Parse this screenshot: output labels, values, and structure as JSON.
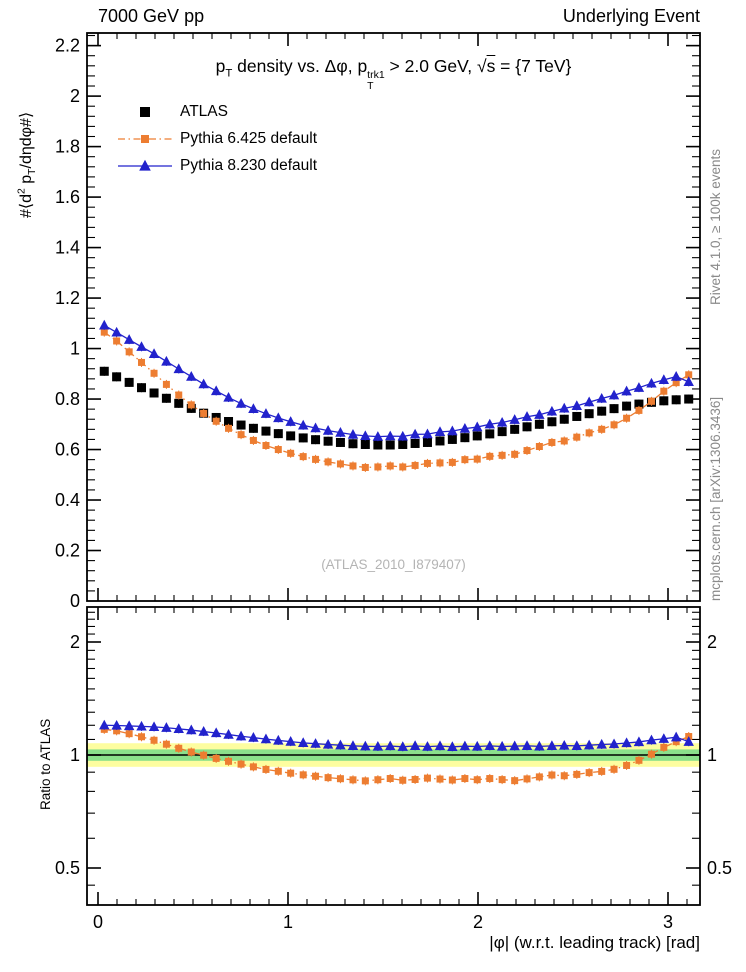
{
  "header": {
    "left": "7000 GeV pp",
    "right": "Underlying Event"
  },
  "captions": {
    "rivet": "Rivet 4.1.0, ≥ 100k events",
    "mcplots": "mcplots.cern.ch [arXiv:1306.3436]",
    "watermark": "(ATLAS_2010_I879407)"
  },
  "chart_data": {
    "type": "line",
    "title_segments": [
      {
        "text": "p"
      },
      {
        "sub": "T"
      },
      {
        "text": " density vs. Δφ, p"
      },
      {
        "stack": {
          "sup": "trk1",
          "sub": "T"
        }
      },
      {
        "text": " > 2.0 GeV,  √"
      },
      {
        "over": "s"
      },
      {
        "text": " = {7 TeV}"
      }
    ],
    "ylabel_segments": [
      {
        "text": "#⟨d"
      },
      {
        "sup": "2"
      },
      {
        "text": " p"
      },
      {
        "sub": "T"
      },
      {
        "text": "/dηdφ#⟩"
      }
    ],
    "xlabel": "|φ| (w.r.t. leading track) [rad]",
    "ratio_label": "Ratio to ATLAS",
    "x": [
      0.033,
      0.098,
      0.164,
      0.229,
      0.295,
      0.36,
      0.425,
      0.491,
      0.556,
      0.622,
      0.687,
      0.753,
      0.818,
      0.884,
      0.949,
      1.014,
      1.08,
      1.145,
      1.211,
      1.276,
      1.342,
      1.407,
      1.473,
      1.538,
      1.604,
      1.669,
      1.734,
      1.8,
      1.865,
      1.931,
      1.996,
      2.062,
      2.127,
      2.193,
      2.258,
      2.323,
      2.389,
      2.454,
      2.52,
      2.585,
      2.651,
      2.716,
      2.782,
      2.847,
      2.913,
      2.978,
      3.043,
      3.109
    ],
    "series": [
      {
        "name": "ATLAS",
        "color": "#000000",
        "marker": "square",
        "marker_size": 9,
        "line": "none",
        "values": [
          0.91,
          0.888,
          0.866,
          0.845,
          0.824,
          0.803,
          0.783,
          0.763,
          0.744,
          0.727,
          0.711,
          0.697,
          0.684,
          0.673,
          0.663,
          0.654,
          0.646,
          0.639,
          0.633,
          0.628,
          0.623,
          0.62,
          0.618,
          0.618,
          0.62,
          0.624,
          0.628,
          0.634,
          0.64,
          0.647,
          0.654,
          0.662,
          0.671,
          0.68,
          0.69,
          0.7,
          0.71,
          0.72,
          0.731,
          0.742,
          0.752,
          0.762,
          0.772,
          0.78,
          0.787,
          0.793,
          0.797,
          0.8
        ]
      },
      {
        "name": "Pythia 6.425 default",
        "color": "#ed7d31",
        "marker": "square",
        "marker_size": 7,
        "line": "dashdot",
        "values": [
          1.065,
          1.03,
          0.987,
          0.945,
          0.902,
          0.858,
          0.816,
          0.777,
          0.743,
          0.712,
          0.684,
          0.659,
          0.636,
          0.616,
          0.6,
          0.585,
          0.572,
          0.561,
          0.551,
          0.543,
          0.535,
          0.529,
          0.531,
          0.535,
          0.531,
          0.537,
          0.545,
          0.547,
          0.549,
          0.56,
          0.562,
          0.573,
          0.577,
          0.581,
          0.596,
          0.612,
          0.628,
          0.634,
          0.649,
          0.666,
          0.68,
          0.698,
          0.724,
          0.755,
          0.791,
          0.831,
          0.865,
          0.896
        ]
      },
      {
        "name": "Pythia 8.230 default",
        "color": "#2222cc",
        "marker": "triangle",
        "marker_size": 9,
        "line": "solid",
        "values": [
          1.092,
          1.064,
          1.035,
          1.007,
          0.979,
          0.949,
          0.919,
          0.889,
          0.859,
          0.832,
          0.806,
          0.782,
          0.761,
          0.742,
          0.725,
          0.71,
          0.696,
          0.685,
          0.675,
          0.667,
          0.659,
          0.654,
          0.651,
          0.653,
          0.652,
          0.66,
          0.661,
          0.67,
          0.673,
          0.683,
          0.689,
          0.7,
          0.707,
          0.718,
          0.73,
          0.738,
          0.751,
          0.763,
          0.773,
          0.788,
          0.802,
          0.815,
          0.831,
          0.845,
          0.862,
          0.876,
          0.889,
          0.868
        ]
      }
    ],
    "axes": {
      "main": {
        "ylim": [
          0,
          2.25
        ],
        "ytick_step": 0.2,
        "ytick_minor_step": 0.04
      },
      "ratio": {
        "scale": "log",
        "ylim": [
          0.399,
          2.48
        ],
        "yticks": [
          0.5,
          1,
          2
        ],
        "ytick_labels": [
          "0.5",
          "1",
          "2"
        ],
        "yticks_minor": [
          0.45,
          0.6,
          0.7,
          0.8,
          0.9,
          1.1,
          1.2,
          1.3,
          1.4,
          1.5,
          1.6,
          1.7,
          1.8,
          1.9,
          2.1,
          2.2,
          2.3,
          2.4
        ]
      },
      "x": {
        "lim": [
          -0.058,
          3.168
        ],
        "ticks": [
          0,
          1,
          2,
          3
        ],
        "tick_labels": [
          "0",
          "1",
          "2",
          "3"
        ],
        "minor_step": 0.1
      }
    },
    "bands": {
      "yellow": [
        0.93,
        1.075
      ],
      "green": [
        0.965,
        1.035
      ],
      "yellow_color": "#fdfda0",
      "green_color": "#8be08b"
    },
    "ratio_reference": 1
  }
}
